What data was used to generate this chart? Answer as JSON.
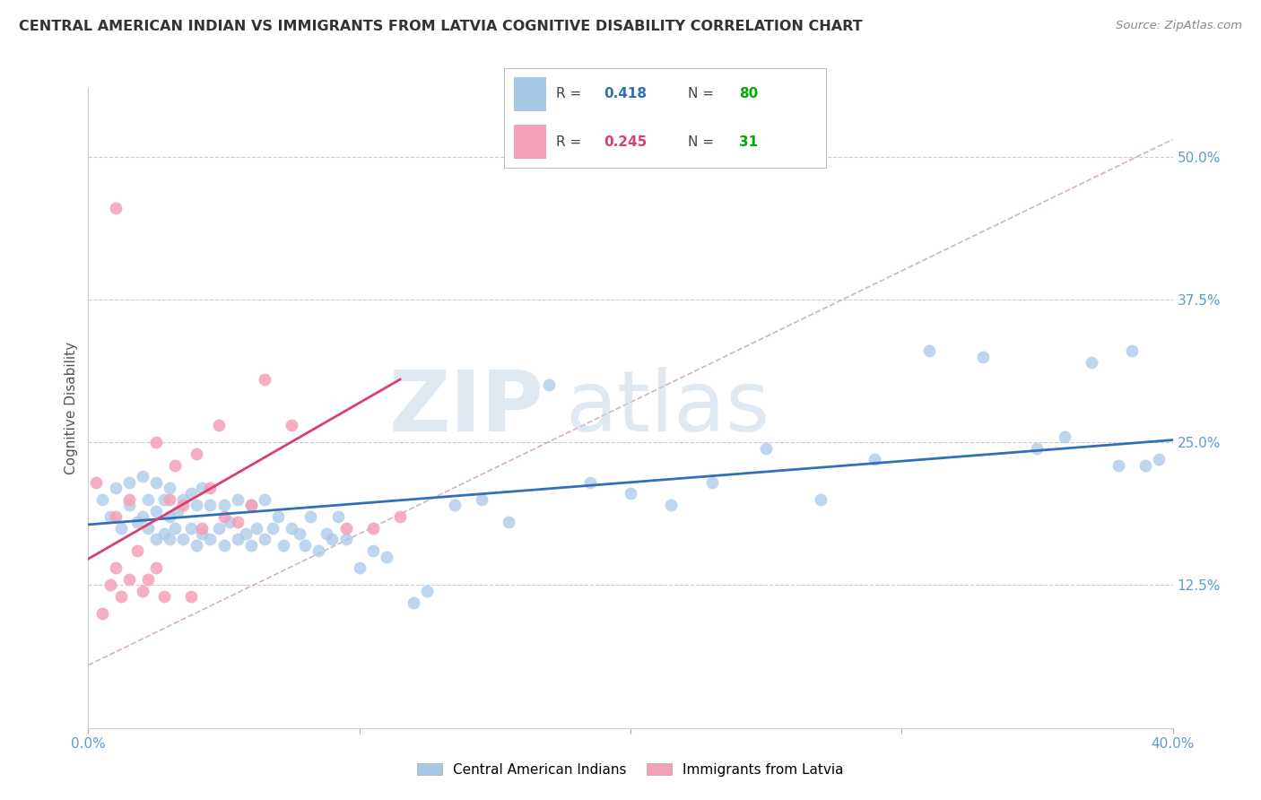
{
  "title": "CENTRAL AMERICAN INDIAN VS IMMIGRANTS FROM LATVIA COGNITIVE DISABILITY CORRELATION CHART",
  "source": "Source: ZipAtlas.com",
  "ylabel": "Cognitive Disability",
  "ytick_labels": [
    "12.5%",
    "25.0%",
    "37.5%",
    "50.0%"
  ],
  "ytick_values": [
    0.125,
    0.25,
    0.375,
    0.5
  ],
  "xmin": 0.0,
  "xmax": 0.4,
  "ymin": 0.0,
  "ymax": 0.56,
  "color_blue": "#a8c8e8",
  "color_pink": "#f4a0b8",
  "color_blue_line": "#3070b8",
  "color_pink_line": "#d84070",
  "color_dashed": "#c8a0a8",
  "legend_label1": "Central American Indians",
  "legend_label2": "Immigrants from Latvia",
  "legend_R1": "0.418",
  "legend_N1": "80",
  "legend_R2": "0.245",
  "legend_N2": "31",
  "blue_scatter_x": [
    0.005,
    0.008,
    0.01,
    0.012,
    0.015,
    0.015,
    0.018,
    0.02,
    0.02,
    0.022,
    0.022,
    0.025,
    0.025,
    0.025,
    0.028,
    0.028,
    0.03,
    0.03,
    0.03,
    0.032,
    0.033,
    0.035,
    0.035,
    0.038,
    0.038,
    0.04,
    0.04,
    0.042,
    0.042,
    0.045,
    0.045,
    0.048,
    0.05,
    0.05,
    0.052,
    0.055,
    0.055,
    0.058,
    0.06,
    0.06,
    0.062,
    0.065,
    0.065,
    0.068,
    0.07,
    0.072,
    0.075,
    0.078,
    0.08,
    0.082,
    0.085,
    0.088,
    0.09,
    0.092,
    0.095,
    0.1,
    0.105,
    0.11,
    0.12,
    0.125,
    0.135,
    0.145,
    0.155,
    0.17,
    0.185,
    0.2,
    0.215,
    0.23,
    0.25,
    0.27,
    0.29,
    0.31,
    0.33,
    0.35,
    0.36,
    0.37,
    0.38,
    0.385,
    0.39,
    0.395
  ],
  "blue_scatter_y": [
    0.2,
    0.185,
    0.21,
    0.175,
    0.195,
    0.215,
    0.18,
    0.185,
    0.22,
    0.175,
    0.2,
    0.165,
    0.19,
    0.215,
    0.17,
    0.2,
    0.165,
    0.185,
    0.21,
    0.175,
    0.19,
    0.165,
    0.2,
    0.175,
    0.205,
    0.16,
    0.195,
    0.17,
    0.21,
    0.165,
    0.195,
    0.175,
    0.16,
    0.195,
    0.18,
    0.165,
    0.2,
    0.17,
    0.16,
    0.195,
    0.175,
    0.165,
    0.2,
    0.175,
    0.185,
    0.16,
    0.175,
    0.17,
    0.16,
    0.185,
    0.155,
    0.17,
    0.165,
    0.185,
    0.165,
    0.14,
    0.155,
    0.15,
    0.11,
    0.12,
    0.195,
    0.2,
    0.18,
    0.3,
    0.215,
    0.205,
    0.195,
    0.215,
    0.245,
    0.2,
    0.235,
    0.33,
    0.325,
    0.245,
    0.255,
    0.32,
    0.23,
    0.33,
    0.23,
    0.235
  ],
  "pink_scatter_x": [
    0.003,
    0.005,
    0.008,
    0.01,
    0.01,
    0.01,
    0.012,
    0.015,
    0.015,
    0.018,
    0.02,
    0.022,
    0.025,
    0.025,
    0.028,
    0.03,
    0.032,
    0.035,
    0.038,
    0.04,
    0.042,
    0.045,
    0.048,
    0.05,
    0.055,
    0.06,
    0.065,
    0.075,
    0.095,
    0.105,
    0.115
  ],
  "pink_scatter_y": [
    0.215,
    0.1,
    0.125,
    0.14,
    0.185,
    0.455,
    0.115,
    0.13,
    0.2,
    0.155,
    0.12,
    0.13,
    0.14,
    0.25,
    0.115,
    0.2,
    0.23,
    0.195,
    0.115,
    0.24,
    0.175,
    0.21,
    0.265,
    0.185,
    0.18,
    0.195,
    0.305,
    0.265,
    0.175,
    0.175,
    0.185
  ],
  "blue_line_x": [
    0.0,
    0.4
  ],
  "blue_line_y": [
    0.178,
    0.252
  ],
  "pink_line_x": [
    0.0,
    0.115
  ],
  "pink_line_y": [
    0.148,
    0.305
  ],
  "dashed_line_x": [
    0.0,
    0.4
  ],
  "dashed_line_y": [
    0.055,
    0.515
  ]
}
